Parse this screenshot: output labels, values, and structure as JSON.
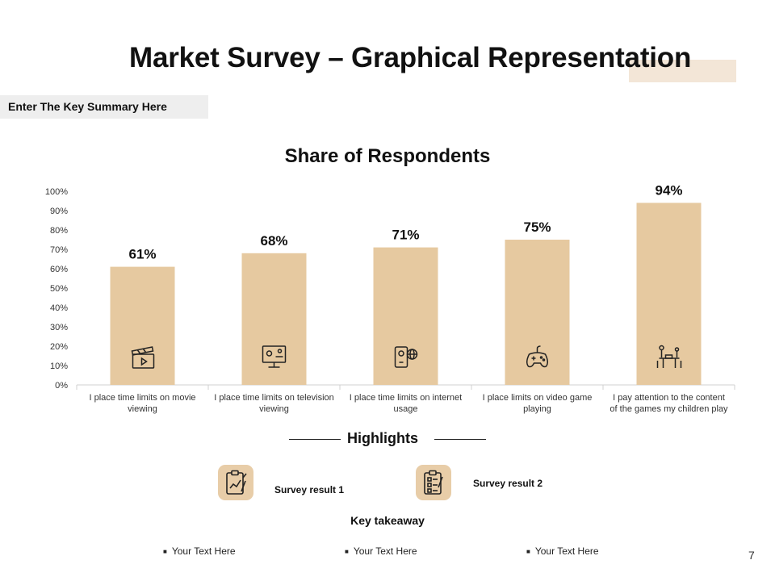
{
  "slide": {
    "title": "Market Survey – Graphical Representation",
    "key_summary": "Enter The Key Summary Here",
    "page_number": "7"
  },
  "colors": {
    "bar": "#e6c9a0",
    "accent": "#f3e6d7",
    "icon_bg": "#e8cda8",
    "axis": "#d0d0d0"
  },
  "chart_data": {
    "type": "bar",
    "title": "Share of Respondents",
    "xlabel": "",
    "ylabel": "",
    "ylim": [
      0,
      100
    ],
    "y_ticks": [
      "0%",
      "10%",
      "20%",
      "30%",
      "40%",
      "50%",
      "60%",
      "70%",
      "80%",
      "90%",
      "100%"
    ],
    "grid": false,
    "categories": [
      "I place time limits on movie viewing",
      "I place time limits on television viewing",
      "I place time limits on internet usage",
      "I place limits on video game playing",
      "I pay attention to the content of the games my children play"
    ],
    "category_lines": [
      [
        "I place time limits on movie",
        "viewing"
      ],
      [
        "I place time limits on television",
        "viewing"
      ],
      [
        "I place time limits on internet",
        "usage"
      ],
      [
        "I place limits on video game",
        "playing"
      ],
      [
        "I pay attention to the content",
        "of the games my children play"
      ]
    ],
    "values": [
      61,
      68,
      71,
      75,
      94
    ],
    "data_labels": [
      "61%",
      "68%",
      "71%",
      "75%",
      "94%"
    ],
    "bar_icons": [
      "clapperboard-icon",
      "television-icon",
      "tablet-internet-icon",
      "gamepad-icon",
      "parent-child-icon"
    ]
  },
  "highlights": {
    "title": "Highlights",
    "results": [
      {
        "label": "Survey result 1",
        "icon": "clipboard-chart-icon"
      },
      {
        "label": "Survey result 2",
        "icon": "checklist-icon"
      }
    ]
  },
  "takeaway": {
    "title": "Key takeaway",
    "bullets": [
      "Your Text  Here",
      "Your Text  Here",
      "Your Text  Here"
    ]
  }
}
